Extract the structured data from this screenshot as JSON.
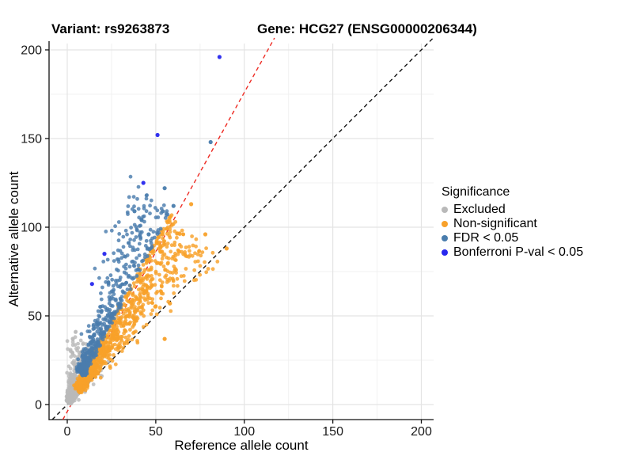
{
  "titles": {
    "variant": "Variant: rs9263873",
    "gene": "Gene: HCG27 (ENSG00000206344)"
  },
  "axes": {
    "x": {
      "label": "Reference allele count"
    },
    "y": {
      "label": "Alternative allele count"
    }
  },
  "legend": {
    "title": "Significance",
    "items": [
      {
        "label": "Excluded",
        "color": "#b9b9b9"
      },
      {
        "label": "Non-significant",
        "color": "#f8a12a"
      },
      {
        "label": "FDR < 0.05",
        "color": "#4a7dad"
      },
      {
        "label": "Bonferroni P-val < 0.05",
        "color": "#2727ee"
      }
    ]
  },
  "chart_data": {
    "type": "scatter",
    "title": "Variant: rs9263873 / Gene: HCG27 (ENSG00000206344)",
    "xlabel": "Reference allele count",
    "ylabel": "Alternative allele count",
    "xlim": [
      -10,
      207
    ],
    "ylim": [
      -9,
      204
    ],
    "x_ticks": [
      0,
      50,
      100,
      150,
      200
    ],
    "y_ticks": [
      0,
      50,
      100,
      150,
      200
    ],
    "minor_ticks": [
      25,
      75,
      125,
      175
    ],
    "grid": "major+minor",
    "legend_position": "right",
    "colors": {
      "grid_major": "#e4e4e4",
      "grid_minor": "#f1f1f1",
      "axis_line": "#111111"
    },
    "reference_lines": [
      {
        "name": "identity (y = x)",
        "slope": 1.0,
        "intercept": 0,
        "style": "dashed",
        "color": "#111111"
      },
      {
        "name": "expected allelic ratio",
        "slope": 1.8,
        "intercept": -4,
        "style": "dashed",
        "color": "#ee2a22"
      }
    ],
    "series": [
      {
        "name": "Excluded",
        "color": "#b9b9b9",
        "n": 470,
        "cluster": {
          "total_min": 3,
          "total_span": 42,
          "total_pow": 2.0,
          "ratio_mean": 0.72,
          "ratio_sd": 0.13,
          "ratio_clip": [
            0.4,
            0.96
          ]
        },
        "extra_points": []
      },
      {
        "name": "Non-significant",
        "color": "#f8a12a",
        "n": 1180,
        "cluster": {
          "total_min": 16,
          "total_span": 150,
          "total_pow": 2.3,
          "ratio_mean": 0.6,
          "ratio_sd": 0.05,
          "ratio_clip": [
            0.44,
            0.645
          ]
        },
        "extra_points": [
          [
            70,
            113
          ],
          [
            78,
            96
          ],
          [
            90,
            88
          ],
          [
            58,
            57
          ],
          [
            55,
            37
          ]
        ]
      },
      {
        "name": "FDR < 0.05",
        "color": "#4a7dad",
        "n": 540,
        "cluster": {
          "total_min": 26,
          "total_span": 140,
          "total_pow": 2.0,
          "ratio_mean": 0.695,
          "ratio_sd": 0.045,
          "ratio_clip": [
            0.655,
            0.84
          ]
        },
        "extra_points": [
          [
            81,
            148
          ],
          [
            55,
            122
          ],
          [
            60,
            112
          ],
          [
            54,
            109
          ],
          [
            38,
            109
          ],
          [
            42,
            104
          ],
          [
            46,
            96
          ]
        ]
      },
      {
        "name": "Bonferroni P-val < 0.05",
        "color": "#2727ee",
        "n": 0,
        "extra_points": [
          [
            86,
            196
          ],
          [
            51,
            152
          ],
          [
            43,
            125
          ],
          [
            21,
            85
          ],
          [
            14,
            68
          ]
        ]
      }
    ]
  }
}
